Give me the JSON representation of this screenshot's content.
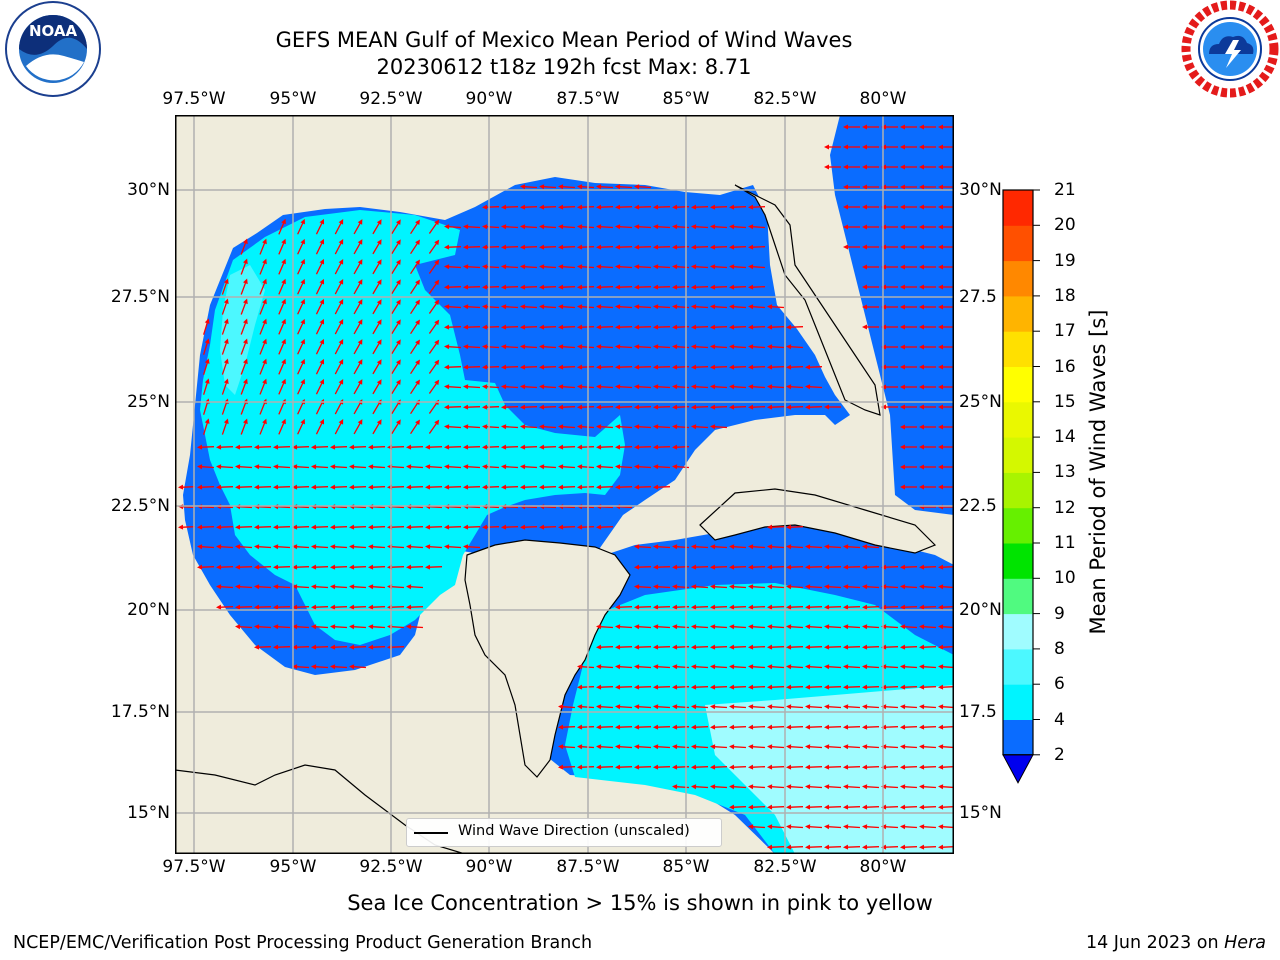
{
  "header": {
    "title_line1": "GEFS MEAN Gulf of Mexico Mean Period of Wind Waves",
    "title_line2": "20230612 t18z 192h fcst   Max: 8.71"
  },
  "logos": {
    "left_text": "NOAA",
    "left_ring": "NATIONAL OCEANIC AND ATMOSPHERIC ADMINISTRATION · U.S. DEPARTMENT OF COMMERCE",
    "right_ring": "NATIONAL WEATHER SERVICE"
  },
  "map": {
    "lon_ticks": [
      "97.5°W",
      "95°W",
      "92.5°W",
      "90°W",
      "87.5°W",
      "85°W",
      "82.5°W",
      "80°W"
    ],
    "lat_ticks_left": [
      "30°N",
      "27.5°N",
      "25°N",
      "22.5°N",
      "20°N",
      "17.5°N",
      "15°N"
    ],
    "lat_ticks_right": [
      "30°N",
      "27.5",
      "25°N",
      "22.5",
      "20°N",
      "17.5",
      "15°N"
    ],
    "legend_label": "Wind Wave Direction (unscaled)",
    "colors": {
      "land": "#efecdc",
      "level_2_4": "#0a6cff",
      "below_2": "#0000ee",
      "level_4_6": "#00f4ff",
      "level_6_8": "#4cf8ff",
      "level_8_9": "#a0fcff",
      "arrow": "#ff0000"
    }
  },
  "colorbar": {
    "label": "Mean Period of Wind Waves [s]",
    "ticks": [
      "2",
      "4",
      "6",
      "8",
      "9",
      "10",
      "11",
      "12",
      "13",
      "14",
      "15",
      "16",
      "17",
      "18",
      "19",
      "20",
      "21"
    ],
    "colors": [
      "#0a6cff",
      "#00f4ff",
      "#4cf8ff",
      "#a0fcff",
      "#50fa80",
      "#00e400",
      "#66f000",
      "#a8f400",
      "#d4f800",
      "#eaf800",
      "#ffff00",
      "#ffe000",
      "#ffb400",
      "#ff8800",
      "#ff5000",
      "#ff2800",
      "#ff0000"
    ]
  },
  "captions": {
    "sea_ice": "Sea Ice Concentration > 15% is shown in pink to yellow",
    "footer_left": "NCEP/EMC/Verification Post Processing Product Generation Branch",
    "footer_date": "14 Jun 2023 on ",
    "footer_host": "Hera"
  }
}
